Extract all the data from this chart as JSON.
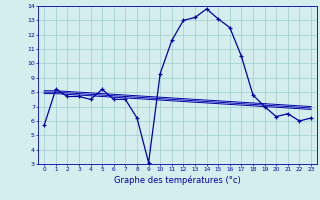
{
  "xlabel": "Graphe des températures (°c)",
  "bg_color": "#d4eeee",
  "line_color": "#0000aa",
  "grid_color": "#a0cccc",
  "hours": [
    0,
    1,
    2,
    3,
    4,
    5,
    6,
    7,
    8,
    9,
    10,
    11,
    12,
    13,
    14,
    15,
    16,
    17,
    18,
    19,
    20,
    21,
    22,
    23
  ],
  "temp_main": [
    5.7,
    8.2,
    7.7,
    7.7,
    7.5,
    8.2,
    7.5,
    7.5,
    6.2,
    3.1,
    9.3,
    11.6,
    13.0,
    13.2,
    13.8,
    13.1,
    12.5,
    10.5,
    7.8,
    7.0,
    6.3,
    6.5,
    6.0,
    6.2
  ],
  "temp_smooth1": [
    7.9,
    7.9,
    7.85,
    7.8,
    7.75,
    7.7,
    7.65,
    7.6,
    7.55,
    7.5,
    7.45,
    7.4,
    7.35,
    7.3,
    7.25,
    7.2,
    7.15,
    7.1,
    7.05,
    7.0,
    6.95,
    6.9,
    6.85,
    6.8
  ],
  "temp_smooth2": [
    8.0,
    8.0,
    7.95,
    7.9,
    7.85,
    7.8,
    7.75,
    7.7,
    7.65,
    7.6,
    7.55,
    7.5,
    7.45,
    7.4,
    7.35,
    7.3,
    7.25,
    7.2,
    7.15,
    7.1,
    7.05,
    7.0,
    6.95,
    6.9
  ],
  "temp_smooth3": [
    8.1,
    8.1,
    8.05,
    8.0,
    7.95,
    7.9,
    7.85,
    7.8,
    7.75,
    7.7,
    7.65,
    7.6,
    7.55,
    7.5,
    7.45,
    7.4,
    7.35,
    7.3,
    7.25,
    7.2,
    7.15,
    7.1,
    7.05,
    7.0
  ],
  "ylim": [
    3,
    14
  ],
  "xlim": [
    -0.5,
    23.5
  ],
  "yticks": [
    3,
    4,
    5,
    6,
    7,
    8,
    9,
    10,
    11,
    12,
    13,
    14
  ],
  "xticks": [
    0,
    1,
    2,
    3,
    4,
    5,
    6,
    7,
    8,
    9,
    10,
    11,
    12,
    13,
    14,
    15,
    16,
    17,
    18,
    19,
    20,
    21,
    22,
    23
  ]
}
